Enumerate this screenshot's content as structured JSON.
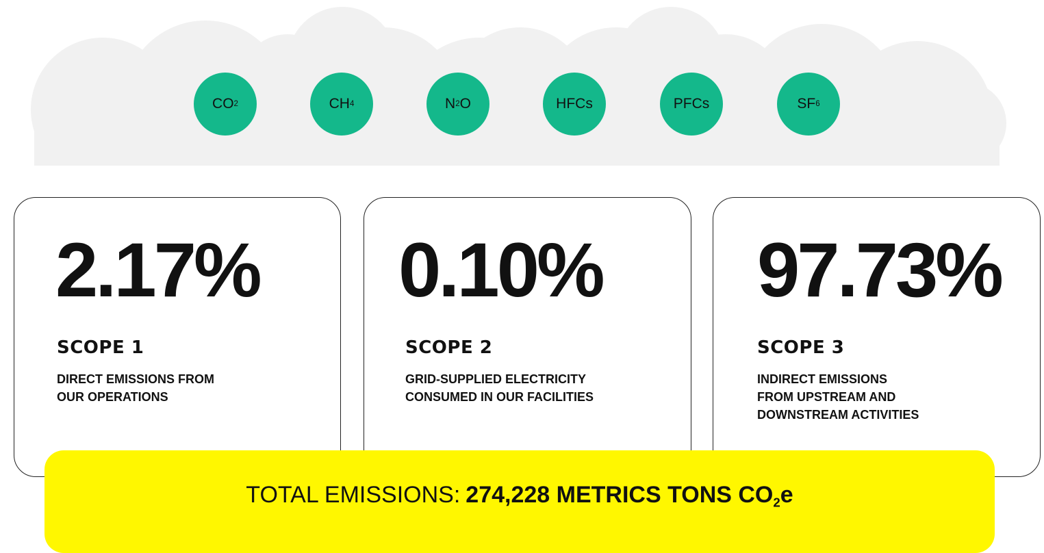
{
  "gases": [
    {
      "text": "CO",
      "sub": "2"
    },
    {
      "text": "CH",
      "sub": "4"
    },
    {
      "text": "N",
      "sub": "2",
      "after": "O"
    },
    {
      "text": "HFCs"
    },
    {
      "text": "PFCs"
    },
    {
      "text": "SF",
      "sub": "6"
    }
  ],
  "scopes": [
    {
      "share": "2.17%",
      "title": "SCOPE 1",
      "description": [
        "DIRECT EMISSIONS FROM",
        "OUR OPERATIONS"
      ]
    },
    {
      "share": "0.10%",
      "title": "SCOPE 2",
      "description": [
        "GRID-SUPPLIED ELECTRICITY",
        "CONSUMED IN OUR FACILITIES"
      ]
    },
    {
      "share": "97.73%",
      "title": "SCOPE 3",
      "description": [
        "INDIRECT EMISSIONS",
        "FROM UPSTREAM AND",
        "DOWNSTREAM ACTIVITIES"
      ]
    }
  ],
  "total": {
    "label": "TOTAL EMISSIONS:",
    "value": "274,228 METRICS TONS CO",
    "sub": "2",
    "after": "e"
  }
}
